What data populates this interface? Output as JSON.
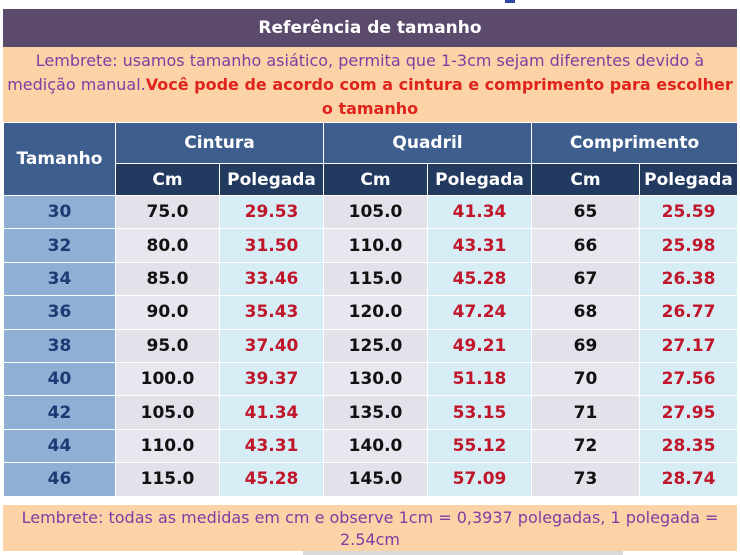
{
  "title": "Referência de tamanho",
  "note_top": {
    "normal": "Lembrete: usamos tamanho asiático, permita que 1-3cm sejam diferentes devido à medição manual.",
    "strong": "Você pode de acordo com a cintura e comprimento para escolher o tamanho"
  },
  "headers": {
    "size": "Tamanho",
    "waist": "Cintura",
    "hip": "Quadril",
    "length": "Comprimento",
    "cm": "Cm",
    "inch": "Polegada"
  },
  "rows": [
    {
      "size": "30",
      "waist_cm": "75.0",
      "waist_in": "29.53",
      "hip_cm": "105.0",
      "hip_in": "41.34",
      "len_cm": "65",
      "len_in": "25.59"
    },
    {
      "size": "32",
      "waist_cm": "80.0",
      "waist_in": "31.50",
      "hip_cm": "110.0",
      "hip_in": "43.31",
      "len_cm": "66",
      "len_in": "25.98"
    },
    {
      "size": "34",
      "waist_cm": "85.0",
      "waist_in": "33.46",
      "hip_cm": "115.0",
      "hip_in": "45.28",
      "len_cm": "67",
      "len_in": "26.38"
    },
    {
      "size": "36",
      "waist_cm": "90.0",
      "waist_in": "35.43",
      "hip_cm": "120.0",
      "hip_in": "47.24",
      "len_cm": "68",
      "len_in": "26.77"
    },
    {
      "size": "38",
      "waist_cm": "95.0",
      "waist_in": "37.40",
      "hip_cm": "125.0",
      "hip_in": "49.21",
      "len_cm": "69",
      "len_in": "27.17"
    },
    {
      "size": "40",
      "waist_cm": "100.0",
      "waist_in": "39.37",
      "hip_cm": "130.0",
      "hip_in": "51.18",
      "len_cm": "70",
      "len_in": "27.56"
    },
    {
      "size": "42",
      "waist_cm": "105.0",
      "waist_in": "41.34",
      "hip_cm": "135.0",
      "hip_in": "53.15",
      "len_cm": "71",
      "len_in": "27.95"
    },
    {
      "size": "44",
      "waist_cm": "110.0",
      "waist_in": "43.31",
      "hip_cm": "140.0",
      "hip_in": "55.12",
      "len_cm": "72",
      "len_in": "28.35"
    },
    {
      "size": "46",
      "waist_cm": "115.0",
      "waist_in": "45.28",
      "hip_cm": "145.0",
      "hip_in": "57.09",
      "len_cm": "73",
      "len_in": "28.74"
    }
  ],
  "note_bottom": "Lembrete: todas as medidas em cm e observe 1cm = 0,3937 polegadas, 1 polegada = 2.54cm",
  "colors": {
    "title_bg": "#5b4a6b",
    "note_bg": "#fbd3a6",
    "note_text": "#7a3fa3",
    "note_strong": "#e0241b",
    "header_bg": "#3e5e8e",
    "subheader_bg": "#233a60",
    "size_cell_bg": "#8fb0d4",
    "cm_cell_bg": "#e3e1ea",
    "inch_cell_bg": "#d7edf6",
    "inch_text": "#c0162a"
  }
}
